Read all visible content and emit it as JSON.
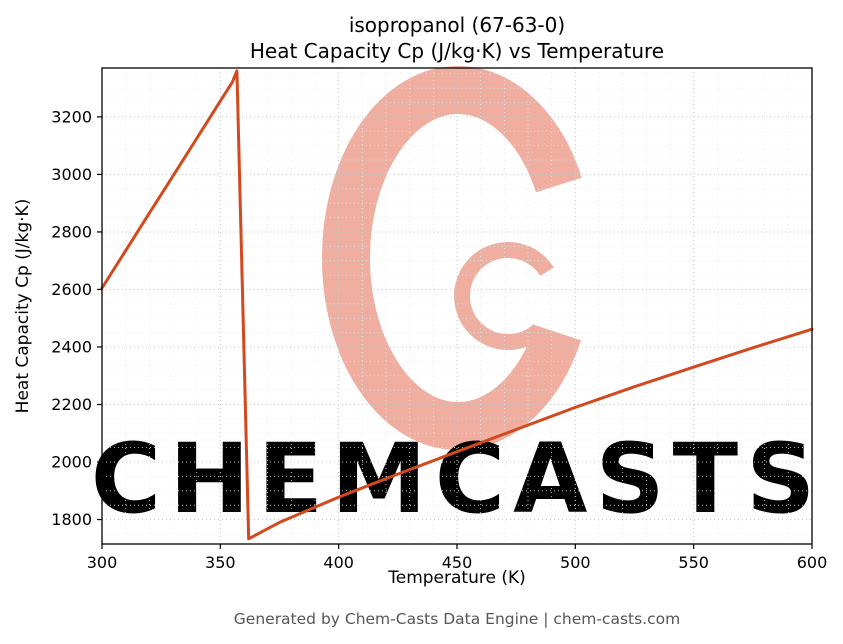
{
  "title": {
    "line1": "isopropanol (67-63-0)",
    "line2": "Heat Capacity Cp (J/kg·K) vs Temperature"
  },
  "footer": "Generated by Chem-Casts Data Engine | chem-casts.com",
  "watermark": {
    "text": "CHEMCASTS",
    "logo": "chemcasts-c-swirl-logo"
  },
  "colors": {
    "line": "#d2491d",
    "watermark_logo": "#efae9f",
    "watermark_text": "#f5c2b6",
    "grid_major": "#c6c6c6",
    "grid_minor": "#e6e6e6",
    "axis": "#000000",
    "footer_text": "#565656"
  },
  "chart_data": {
    "type": "line",
    "title": "isopropanol (67-63-0) Heat Capacity Cp (J/kg·K) vs Temperature",
    "xlabel": "Temperature (K)",
    "ylabel": "Heat Capacity Cp (J/kg·K)",
    "xlim": [
      300,
      600
    ],
    "ylim": [
      1715,
      3370
    ],
    "xticks": [
      300,
      350,
      400,
      450,
      500,
      550,
      600
    ],
    "yticks": [
      1800,
      2000,
      2200,
      2400,
      2600,
      2800,
      3000,
      3200
    ],
    "minor_x_step": 10,
    "minor_y_step": 50,
    "grid": true,
    "legend": false,
    "series": [
      {
        "name": "Cp (J/kg·K)",
        "x": [
          300,
          310,
          320,
          330,
          340,
          350,
          355,
          357,
          362,
          375,
          400,
          425,
          450,
          475,
          500,
          525,
          550,
          575,
          600
        ],
        "y": [
          2605,
          2735,
          2865,
          2995,
          3125,
          3255,
          3320,
          3360,
          1733,
          1790,
          1878,
          1958,
          2036,
          2113,
          2190,
          2262,
          2330,
          2397,
          2462
        ]
      }
    ]
  }
}
